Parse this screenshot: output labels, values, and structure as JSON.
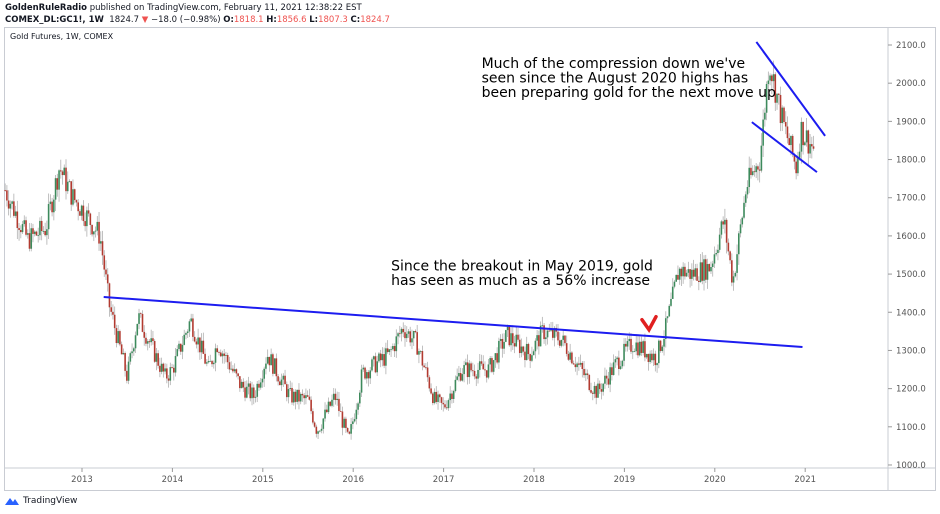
{
  "header": {
    "publisher": "GoldenRuleRadio",
    "published_text": "published on TradingView.com, February 11, 2021 12:38:22 EST",
    "symbol": "COMEX_DL:GC1!, 1W",
    "last": "1824.7",
    "change": "−18.0 (−0.98%)",
    "o_label": "O:",
    "o": "1818.1",
    "h_label": "H:",
    "h": "1856.6",
    "l_label": "L:",
    "l": "1807.3",
    "c_label": "C:",
    "c": "1824.7"
  },
  "footer": {
    "brand": "TradingView"
  },
  "colors": {
    "up": "#3d8a5c",
    "down": "#b23a30",
    "wick": "#b0b0b0",
    "trendline": "#1c1cf0",
    "arrow": "#e02020"
  },
  "chart_data": {
    "type": "candlestick",
    "title": "Gold Futures, 1W, COMEX",
    "x_ticks": [
      "2013",
      "2014",
      "2015",
      "2016",
      "2017",
      "2018",
      "2019",
      "2020",
      "2021"
    ],
    "y_ticks": [
      "1000.0",
      "1100.0",
      "1200.0",
      "1300.0",
      "1400.0",
      "1500.0",
      "1600.0",
      "1700.0",
      "1800.0",
      "1900.0",
      "2000.0",
      "2100.0"
    ],
    "xlim": [
      2012.15,
      2021.9
    ],
    "ylim": [
      990,
      2150
    ],
    "price_path": [
      [
        2012.15,
        1720
      ],
      [
        2012.4,
        1590
      ],
      [
        2012.6,
        1620
      ],
      [
        2012.75,
        1780
      ],
      [
        2012.9,
        1700
      ],
      [
        2013.0,
        1670
      ],
      [
        2013.2,
        1600
      ],
      [
        2013.3,
        1420
      ],
      [
        2013.5,
        1230
      ],
      [
        2013.62,
        1390
      ],
      [
        2013.75,
        1320
      ],
      [
        2013.92,
        1230
      ],
      [
        2014.0,
        1250
      ],
      [
        2014.2,
        1380
      ],
      [
        2014.4,
        1250
      ],
      [
        2014.5,
        1320
      ],
      [
        2014.75,
        1210
      ],
      [
        2014.9,
        1180
      ],
      [
        2015.05,
        1290
      ],
      [
        2015.3,
        1180
      ],
      [
        2015.5,
        1170
      ],
      [
        2015.6,
        1090
      ],
      [
        2015.8,
        1180
      ],
      [
        2015.95,
        1060
      ],
      [
        2016.1,
        1240
      ],
      [
        2016.4,
        1290
      ],
      [
        2016.55,
        1360
      ],
      [
        2016.7,
        1320
      ],
      [
        2016.9,
        1170
      ],
      [
        2017.0,
        1150
      ],
      [
        2017.2,
        1250
      ],
      [
        2017.5,
        1250
      ],
      [
        2017.7,
        1340
      ],
      [
        2017.95,
        1290
      ],
      [
        2018.1,
        1350
      ],
      [
        2018.3,
        1330
      ],
      [
        2018.6,
        1220
      ],
      [
        2018.7,
        1190
      ],
      [
        2018.95,
        1280
      ],
      [
        2019.1,
        1320
      ],
      [
        2019.35,
        1280
      ],
      [
        2019.45,
        1350
      ],
      [
        2019.6,
        1510
      ],
      [
        2019.75,
        1500
      ],
      [
        2019.95,
        1520
      ],
      [
        2020.1,
        1640
      ],
      [
        2020.2,
        1480
      ],
      [
        2020.35,
        1730
      ],
      [
        2020.5,
        1800
      ],
      [
        2020.6,
        2060
      ],
      [
        2020.75,
        1900
      ],
      [
        2020.9,
        1780
      ],
      [
        2020.95,
        1880
      ],
      [
        2021.1,
        1825
      ]
    ],
    "trendlines": [
      {
        "name": "breakout-trendline",
        "points": [
          [
            2013.24,
            1440
          ],
          [
            2020.97,
            1309
          ]
        ]
      },
      {
        "name": "upper-channel-line",
        "points": [
          [
            2020.46,
            2108
          ],
          [
            2021.22,
            1862
          ]
        ]
      },
      {
        "name": "lower-channel-line",
        "points": [
          [
            2020.41,
            1898
          ],
          [
            2021.13,
            1767
          ]
        ]
      }
    ],
    "annotations": [
      {
        "lines": [
          "Much of the compression down we've",
          "seen since the August 2020 highs has",
          "been preparing gold for the next move up"
        ],
        "anchor": [
          2017.42,
          2040
        ]
      },
      {
        "lines": [
          "Since the breakout in May 2019, gold",
          "has seen as much as a 56% increase"
        ],
        "anchor": [
          2016.42,
          1510
        ]
      }
    ],
    "arrow_at": [
      2019.25,
      1370
    ]
  }
}
